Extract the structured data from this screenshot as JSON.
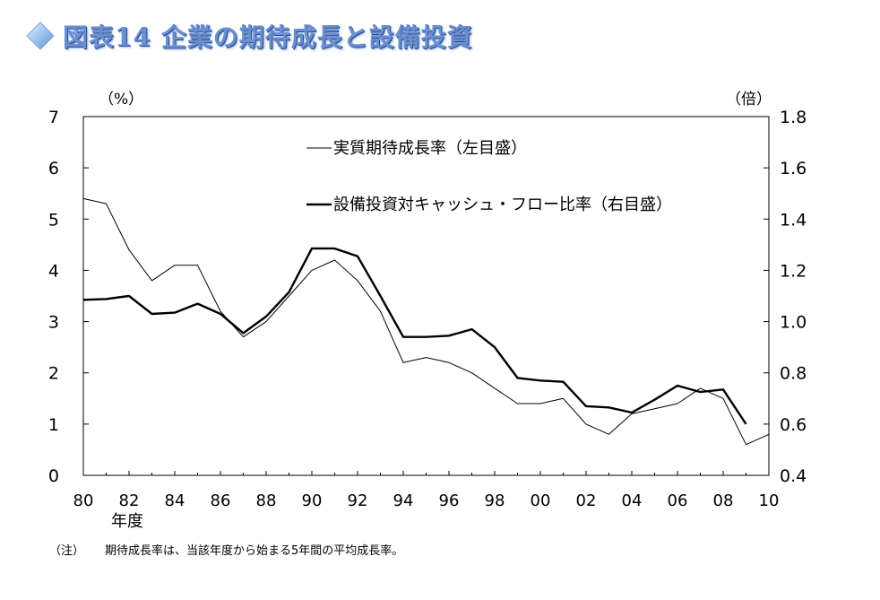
{
  "title": "図表14 企業の期待成長と設備投資",
  "note": {
    "label": "（注）",
    "text": "期待成長率は、当該年度から始まる5年間の平均成長率。"
  },
  "colors": {
    "title": "#6a8fd0",
    "title_shadow": "#2a4d8f",
    "diamond": "#8fb8e8",
    "line": "#000000"
  },
  "chart_data": {
    "type": "line",
    "title": "",
    "xlabel": "年度",
    "y_left_unit": "（%）",
    "y_right_unit": "（倍）",
    "ylim_left": [
      0,
      7
    ],
    "ylim_right": [
      0.4,
      1.8
    ],
    "xlim": [
      1980,
      2010
    ],
    "x_ticks": [
      {
        "year": 1980,
        "label": "80"
      },
      {
        "year": 1982,
        "label": "82"
      },
      {
        "year": 1984,
        "label": "84"
      },
      {
        "year": 1986,
        "label": "86"
      },
      {
        "year": 1988,
        "label": "88"
      },
      {
        "year": 1990,
        "label": "90"
      },
      {
        "year": 1992,
        "label": "92"
      },
      {
        "year": 1994,
        "label": "94"
      },
      {
        "year": 1996,
        "label": "96"
      },
      {
        "year": 1998,
        "label": "98"
      },
      {
        "year": 2000,
        "label": "00"
      },
      {
        "year": 2002,
        "label": "02"
      },
      {
        "year": 2004,
        "label": "04"
      },
      {
        "year": 2006,
        "label": "06"
      },
      {
        "year": 2008,
        "label": "08"
      },
      {
        "year": 2010,
        "label": "10"
      }
    ],
    "y_left_ticks": [
      "0",
      "1",
      "2",
      "3",
      "4",
      "5",
      "6",
      "7"
    ],
    "y_right_ticks": [
      "0.4",
      "0.6",
      "0.8",
      "1.0",
      "1.2",
      "1.4",
      "1.6",
      "1.8"
    ],
    "grid": false,
    "legend_position": "top-center",
    "series": [
      {
        "name": "実質期待成長率（左目盛）",
        "axis": "left",
        "style": "thin",
        "x": [
          1980,
          1981,
          1982,
          1983,
          1984,
          1985,
          1986,
          1987,
          1988,
          1989,
          1990,
          1991,
          1992,
          1993,
          1994,
          1995,
          1996,
          1997,
          1998,
          1999,
          2000,
          2001,
          2002,
          2003,
          2004,
          2005,
          2006,
          2007,
          2008,
          2009,
          2010
        ],
        "values": [
          5.4,
          5.3,
          4.4,
          3.8,
          4.1,
          4.1,
          3.2,
          2.7,
          3.0,
          3.5,
          4.0,
          4.2,
          3.8,
          3.2,
          2.2,
          2.3,
          2.2,
          2.0,
          1.7,
          1.4,
          1.4,
          1.5,
          1.0,
          0.8,
          1.2,
          1.3,
          1.4,
          1.7,
          1.5,
          0.6,
          0.8
        ]
      },
      {
        "name": "設備投資対キャッシュ・フロー比率（右目盛）",
        "axis": "right",
        "style": "thick",
        "x": [
          1980,
          1981,
          1982,
          1983,
          1984,
          1985,
          1986,
          1987,
          1988,
          1989,
          1990,
          1991,
          1992,
          1993,
          1994,
          1995,
          1996,
          1997,
          1998,
          1999,
          2000,
          2001,
          2002,
          2003,
          2004,
          2005,
          2006,
          2007,
          2008,
          2009
        ],
        "values": [
          1.085,
          1.088,
          1.1,
          1.03,
          1.035,
          1.07,
          1.03,
          0.955,
          1.02,
          1.115,
          1.285,
          1.285,
          1.255,
          1.1,
          0.94,
          0.94,
          0.945,
          0.97,
          0.9,
          0.78,
          0.77,
          0.765,
          0.67,
          0.665,
          0.645,
          0.695,
          0.75,
          0.725,
          0.735,
          0.6
        ]
      }
    ]
  }
}
